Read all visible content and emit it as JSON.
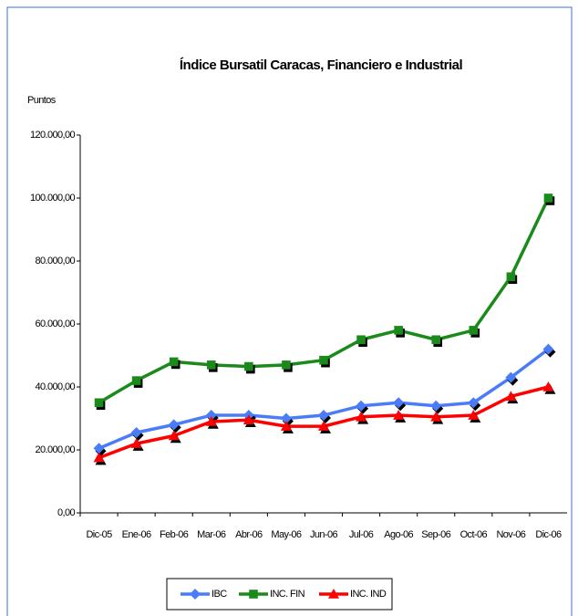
{
  "chart_data": {
    "type": "line",
    "title": "Índice Bursatil Caracas, Financiero e Industrial",
    "y_label": "Puntos",
    "categories": [
      "Dic-05",
      "Ene-06",
      "Feb-06",
      "Mar-06",
      "Abr-06",
      "May-06",
      "Jun-06",
      "Jul-06",
      "Ago-06",
      "Sep-06",
      "Oct-06",
      "Nov-06",
      "Dic-06"
    ],
    "series": [
      {
        "name": "IBC",
        "color": "#4a7cf7",
        "marker": "diamond",
        "values": [
          20500,
          25500,
          28000,
          31000,
          31000,
          30000,
          31000,
          34000,
          35000,
          34000,
          35000,
          43000,
          52000
        ]
      },
      {
        "name": "INC. FIN",
        "color": "#1a8a1a",
        "marker": "square",
        "values": [
          35000,
          42000,
          48000,
          47000,
          46500,
          47000,
          48500,
          55000,
          58000,
          55000,
          58000,
          75000,
          100000
        ]
      },
      {
        "name": "INC. IND",
        "color": "#ff0000",
        "marker": "triangle",
        "values": [
          17500,
          22000,
          24500,
          29000,
          29500,
          27500,
          27500,
          30500,
          31000,
          30500,
          31000,
          37000,
          40000
        ]
      }
    ],
    "ylim": [
      0,
      120000
    ],
    "yticks": [
      {
        "value": 0,
        "label": "0,00"
      },
      {
        "value": 20000,
        "label": "20.000,00"
      },
      {
        "value": 40000,
        "label": "40.000,00"
      },
      {
        "value": 60000,
        "label": "60.000,00"
      },
      {
        "value": 80000,
        "label": "80.000,00"
      },
      {
        "value": 100000,
        "label": "100.000,00"
      },
      {
        "value": 120000,
        "label": "120.000,00"
      }
    ],
    "legend": "bottom"
  }
}
